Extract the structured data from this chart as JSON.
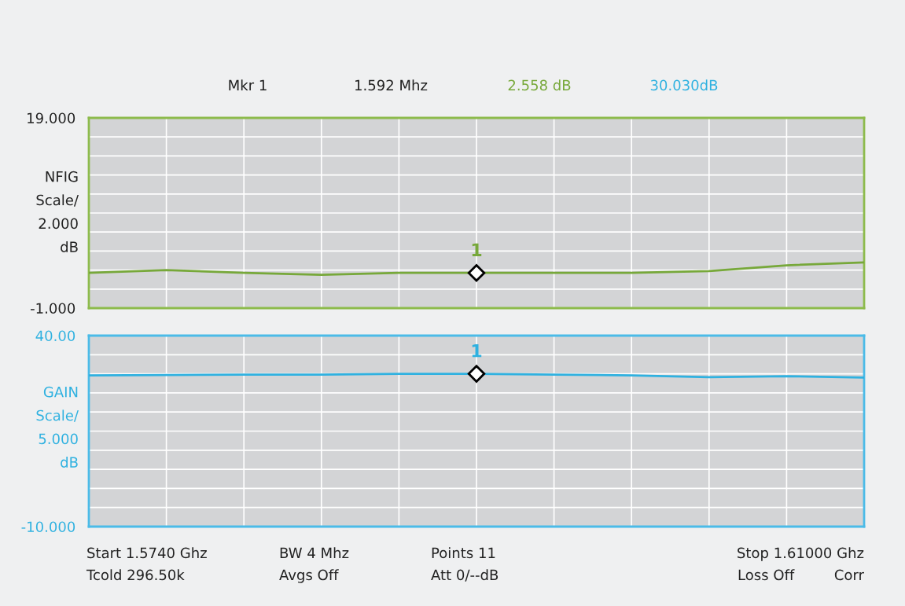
{
  "chart_data": [
    {
      "type": "line",
      "ylabel": "NFIG\nScale/\n2.000\ndB",
      "categories": [
        null,
        null,
        null,
        null,
        null,
        null,
        null,
        null,
        null,
        null,
        null
      ],
      "series": [
        {
          "color": "#77a83a",
          "values": [
            2.7,
            3.0,
            2.7,
            2.5,
            2.7,
            2.7,
            2.7,
            2.7,
            2.9,
            3.5,
            3.8
          ]
        }
      ],
      "ylim": [
        -1,
        19
      ],
      "yticks": [
        {
          "value": -1,
          "label": "-1.000"
        },
        {
          "value": 1,
          "label": null
        },
        {
          "value": 3,
          "label": null
        },
        {
          "value": 5,
          "label": null
        },
        {
          "value": 7,
          "label": null
        },
        {
          "value": 9,
          "label": null
        },
        {
          "value": 11,
          "label": null
        },
        {
          "value": 13,
          "label": null
        },
        {
          "value": 15,
          "label": null
        },
        {
          "value": 17,
          "label": null
        },
        {
          "value": 19,
          "label": "19.000"
        }
      ],
      "tick_labels": "y",
      "grid": true,
      "annotations": [
        "Mkr 1",
        "1.592 Mhz",
        "2.558 dB",
        {
          "text": "1",
          "y": 2.7
        }
      ]
    },
    {
      "type": "line",
      "ylabel": "GAIN\nScale/\n5.000\ndB",
      "categories": [
        null,
        null,
        null,
        null,
        null,
        null,
        null,
        null,
        null,
        null,
        null
      ],
      "series": [
        {
          "color": "#2fb1e0",
          "values": [
            29.6,
            29.7,
            29.8,
            29.8,
            30.0,
            30.0,
            29.8,
            29.6,
            29.1,
            29.4,
            29.0
          ]
        }
      ],
      "ylim": [
        -10,
        40
      ],
      "yticks": [
        {
          "value": -10,
          "label": "-10.000"
        },
        {
          "value": -5,
          "label": null
        },
        {
          "value": 0,
          "label": null
        },
        {
          "value": 5,
          "label": null
        },
        {
          "value": 10,
          "label": null
        },
        {
          "value": 15,
          "label": null
        },
        {
          "value": 20,
          "label": null
        },
        {
          "value": 25,
          "label": null
        },
        {
          "value": 30,
          "label": null
        },
        {
          "value": 35,
          "label": null
        },
        {
          "value": 40,
          "label": "40.00"
        }
      ],
      "tick_labels": "y",
      "grid": true,
      "annotations": [
        "30.030dB",
        {
          "text": "1",
          "y": 30.0
        },
        "Start 1.5740 Ghz",
        "Tcold 296.50k",
        "BW 4 Mhz",
        "Avgs Off",
        "Points 11",
        "Att 0/--dB",
        "Stop 1.61000 Ghz",
        "Loss Off",
        "Corr"
      ]
    }
  ]
}
